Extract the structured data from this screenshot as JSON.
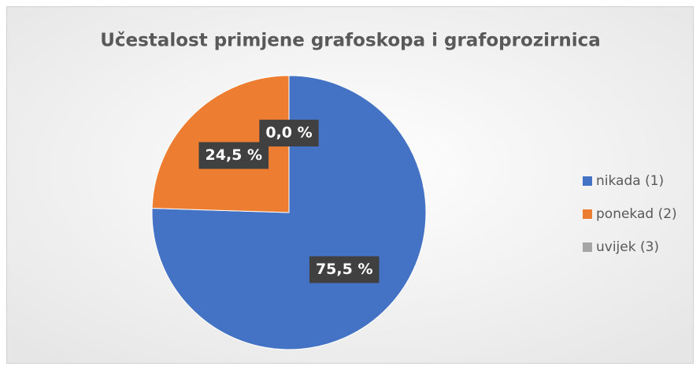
{
  "chart_data": {
    "type": "pie",
    "title": "Učestalost primjene grafoskopa i grafoprozirnica",
    "categories": [
      "nikada (1)",
      "ponekad (2)",
      "uvijek (3)"
    ],
    "values": [
      75.5,
      24.5,
      0.0
    ],
    "value_labels": [
      "75,5 %",
      "24,5 %",
      "0,0 %"
    ],
    "colors": [
      "#4472c4",
      "#ed7d31",
      "#a5a5a5"
    ],
    "legend": "right"
  }
}
